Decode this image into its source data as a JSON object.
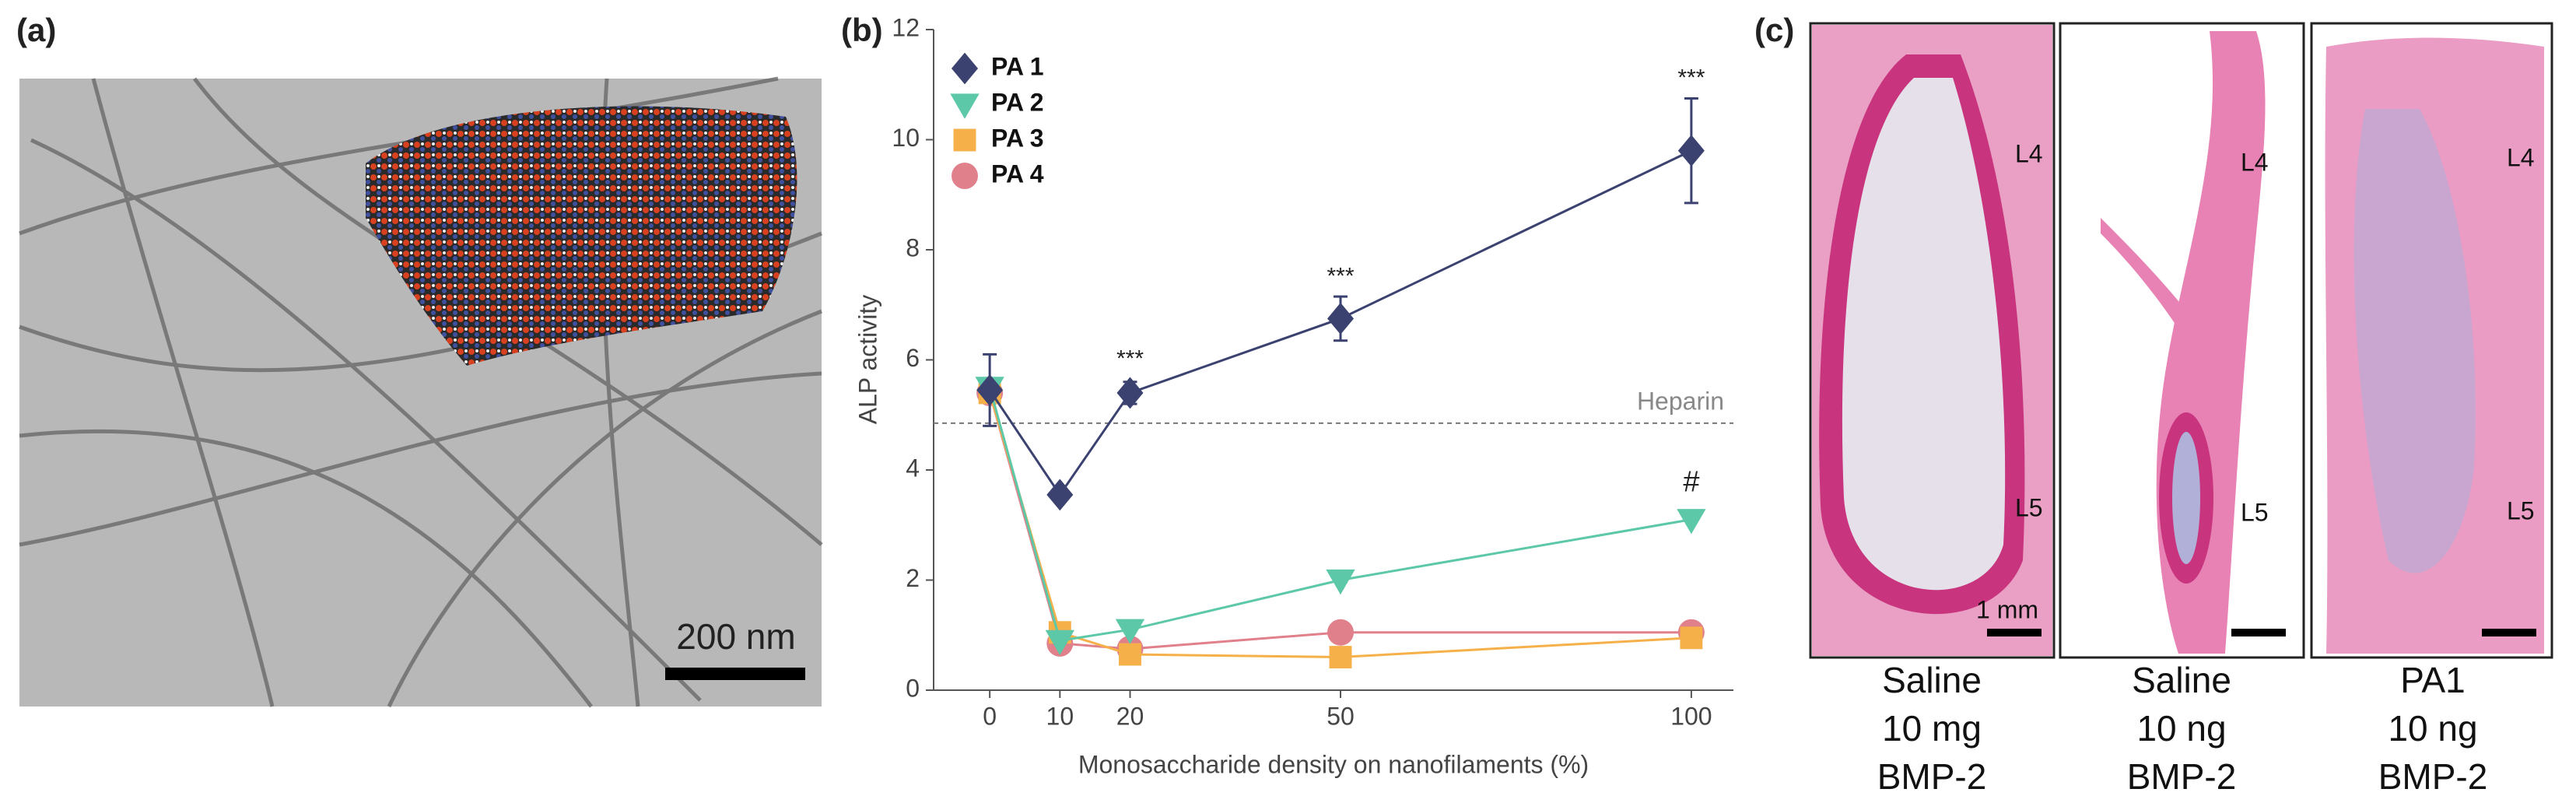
{
  "panel_labels": [
    "(a)",
    "(b)",
    "(c)"
  ],
  "panel_a": {
    "scale_bar": "200 nm"
  },
  "chart_data": {
    "type": "line",
    "x_label": "Monosaccharide density on nanofilaments (%)",
    "y_label": "ALP activity",
    "x": [
      0,
      10,
      20,
      50,
      100
    ],
    "xlim": [
      -8,
      106
    ],
    "xticks": [
      0,
      10,
      20,
      50,
      100
    ],
    "ylim": [
      0,
      12
    ],
    "yticks": [
      0,
      2,
      4,
      6,
      8,
      10,
      12
    ],
    "legend": "upper left",
    "reference_line": {
      "value": 4.85,
      "label": "Heparin"
    },
    "series": [
      {
        "name": "PA 1",
        "color": "#3b4270",
        "marker": "diamond",
        "values": [
          5.45,
          3.55,
          5.4,
          6.75,
          9.8
        ],
        "errors": [
          0.65,
          0,
          0.2,
          0.4,
          0.95
        ]
      },
      {
        "name": "PA 2",
        "color": "#5cc8a8",
        "marker": "triangle-down",
        "values": [
          5.5,
          0.9,
          1.1,
          2.0,
          3.1
        ]
      },
      {
        "name": "PA 3",
        "color": "#f6b04a",
        "marker": "square",
        "values": [
          5.4,
          1.05,
          0.65,
          0.6,
          0.95
        ]
      },
      {
        "name": "PA 4",
        "color": "#e0808a",
        "marker": "circle",
        "values": [
          5.4,
          0.85,
          0.75,
          1.05,
          1.05
        ]
      }
    ],
    "annotations": [
      {
        "text": "***",
        "x": 20,
        "y": 6.0
      },
      {
        "text": "***",
        "x": 50,
        "y": 7.5
      },
      {
        "text": "***",
        "x": 100,
        "y": 11.1
      },
      {
        "text": "#",
        "x": 100,
        "y": 3.75
      }
    ]
  },
  "panel_c": {
    "images": [
      {
        "labels": [
          "L4",
          "L5"
        ],
        "scale_label": "1 mm",
        "caption": [
          "Saline",
          "10 mg",
          "BMP-2"
        ]
      },
      {
        "labels": [
          "L4",
          "L5"
        ],
        "caption": [
          "Saline",
          "10 ng",
          "BMP-2"
        ]
      },
      {
        "labels": [
          "L4",
          "L5"
        ],
        "caption": [
          "PA1",
          "10 ng",
          "BMP-2"
        ]
      }
    ]
  }
}
